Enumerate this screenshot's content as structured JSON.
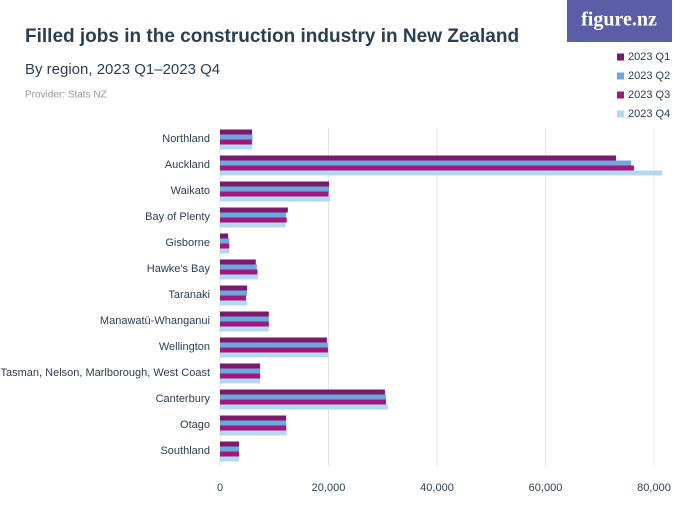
{
  "logo": "figure.nz",
  "chart_data": {
    "type": "hbar",
    "title": "Filled jobs in the construction industry in New Zealand",
    "subtitle": "By region, 2023 Q1–2023 Q4",
    "source": "Provider: Stats NZ",
    "categories": [
      "Northland",
      "Auckland",
      "Waikato",
      "Bay of Plenty",
      "Gisborne",
      "Hawke's Bay",
      "Taranaki",
      "Manawatū-Whanganui",
      "Wellington",
      "Tasman, Nelson, Marlborough, West Coast",
      "Canterbury",
      "Otago",
      "Southland"
    ],
    "series": [
      {
        "name": "2023 Q1",
        "color": "#7b1a6b",
        "values": [
          5900,
          73000,
          20100,
          12500,
          1500,
          6600,
          5000,
          9000,
          19700,
          7400,
          30400,
          12200,
          3500
        ]
      },
      {
        "name": "2023 Q2",
        "color": "#6fa8dc",
        "values": [
          6000,
          75800,
          20100,
          12200,
          1700,
          6800,
          5000,
          9000,
          19900,
          7400,
          30600,
          12200,
          3500
        ]
      },
      {
        "name": "2023 Q3",
        "color": "#a0187a",
        "values": [
          5900,
          76300,
          20000,
          12300,
          1700,
          6900,
          4800,
          9000,
          19900,
          7400,
          30600,
          12200,
          3500
        ]
      },
      {
        "name": "2023 Q4",
        "color": "#b3d9f2",
        "values": [
          6000,
          81500,
          20300,
          12100,
          1700,
          7000,
          5000,
          9000,
          20000,
          7400,
          31000,
          12300,
          3500
        ]
      }
    ],
    "xlim": [
      0,
      80000
    ],
    "xticks": [
      0,
      {
        "value": 20000,
        "label": "20,000"
      },
      {
        "value": 40000,
        "label": "40,000"
      },
      {
        "value": 60000,
        "label": "60,000"
      },
      {
        "value": 80000,
        "label": "80,000"
      }
    ],
    "grid": true,
    "legend": "top-right"
  }
}
